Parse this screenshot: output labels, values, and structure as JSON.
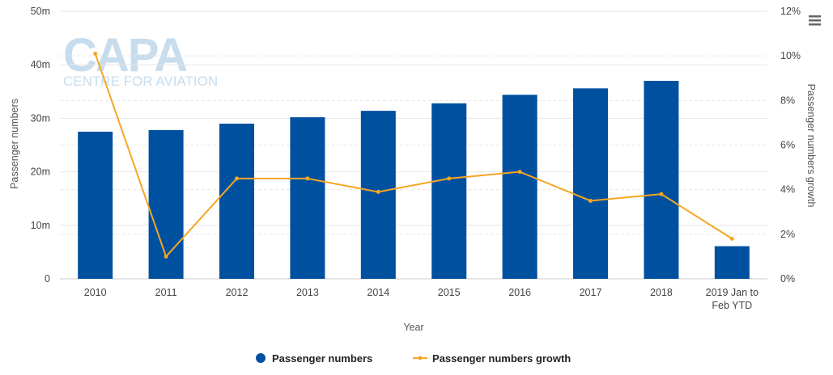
{
  "chart_data": {
    "type": "bar",
    "xlabel": "Year",
    "categories": [
      "2010",
      "2011",
      "2012",
      "2013",
      "2014",
      "2015",
      "2016",
      "2017",
      "2018",
      "2019 Jan to Feb YTD"
    ],
    "category_lines": [
      [
        "2010"
      ],
      [
        "2011"
      ],
      [
        "2012"
      ],
      [
        "2013"
      ],
      [
        "2014"
      ],
      [
        "2015"
      ],
      [
        "2016"
      ],
      [
        "2017"
      ],
      [
        "2018"
      ],
      [
        "2019 Jan to",
        "Feb YTD"
      ]
    ],
    "left_axis": {
      "label": "Passenger numbers",
      "ylim": [
        0,
        50
      ],
      "ticks": [
        0,
        10,
        20,
        30,
        40,
        50
      ],
      "tick_labels": [
        "0",
        "10m",
        "20m",
        "30m",
        "40m",
        "50m"
      ]
    },
    "right_axis": {
      "label": "Passenger numbers growth",
      "ylim": [
        0,
        12
      ],
      "ticks": [
        0,
        2,
        4,
        6,
        8,
        10,
        12
      ],
      "tick_labels": [
        "0%",
        "2%",
        "4%",
        "6%",
        "8%",
        "10%",
        "12%"
      ]
    },
    "series": [
      {
        "name": "Passenger numbers",
        "type": "bar",
        "axis": "left",
        "color": "#0050a0",
        "values": [
          27.5,
          27.8,
          29.0,
          30.2,
          31.4,
          32.8,
          34.4,
          35.6,
          37.0,
          6.1
        ]
      },
      {
        "name": "Passenger numbers growth",
        "type": "line",
        "axis": "right",
        "color": "#f5a623",
        "values": [
          10.1,
          1.0,
          4.5,
          4.5,
          3.9,
          4.5,
          4.8,
          3.5,
          3.8,
          1.8
        ]
      }
    ],
    "grid": true,
    "legend": "bottom-center"
  },
  "watermark": {
    "logo": "CAPA",
    "tagline": "CENTRE FOR AVIATION"
  },
  "menu": {
    "icon": "hamburger-menu-icon"
  }
}
